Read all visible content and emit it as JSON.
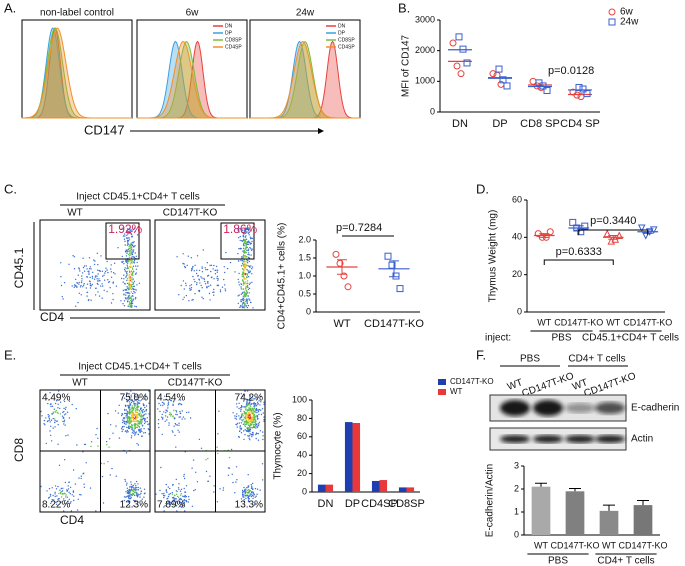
{
  "panels": {
    "A": {
      "label": "A.",
      "titles": [
        "non-label control",
        "6w",
        "24w"
      ],
      "legend": [
        "DN",
        "DP",
        "CD8SP",
        "CD4SP"
      ],
      "x_label": "CD147"
    },
    "B": {
      "label": "B."
    },
    "C": {
      "label": "C.",
      "title": "Inject CD45.1+CD4+ T cells",
      "groups": [
        "WT",
        "CD147T-KO"
      ],
      "gates": [
        "1.92%",
        "1.86%"
      ],
      "x_label": "CD4",
      "y_label": "CD45.1"
    },
    "D": {
      "label": "D."
    },
    "E": {
      "label": "E.",
      "title": "Inject CD45.1+CD4+ T cells",
      "groups": [
        "WT",
        "CD147T-KO"
      ],
      "quadrants": [
        [
          "4.49%",
          "75.0%",
          "8.22%",
          "12.3%"
        ],
        [
          "4.54%",
          "74.2%",
          "7.89%",
          "13.3%"
        ]
      ],
      "x_label": "CD4",
      "y_label": "CD8"
    },
    "F": {
      "label": "F.",
      "groups": [
        "PBS",
        "CD4+ T cells"
      ],
      "lanes": [
        "WT",
        "CD147T-KO",
        "WT",
        "CD147T-KO"
      ],
      "bands": [
        "E-cadherin",
        "Actin"
      ]
    }
  },
  "chart_data": [
    {
      "type": "dot",
      "categories": [
        "DN",
        "DP",
        "CD8 SP",
        "CD4 SP"
      ],
      "ylabel": "MFI of CD147",
      "ylim": [
        0,
        3000
      ],
      "yticks": [
        0,
        1000,
        2000,
        3000
      ],
      "annotations": [
        "p=0.0128"
      ],
      "series": [
        {
          "name": "6w",
          "color": "#e8413c",
          "marker": "circle",
          "values": [
            [
              2250,
              1500,
              1250
            ],
            [
              1250,
              1200,
              900
            ],
            [
              1000,
              850,
              800
            ],
            [
              650,
              550,
              500
            ]
          ],
          "means": [
            1650,
            1120,
            880,
            570
          ]
        },
        {
          "name": "24w",
          "color": "#3a5fcd",
          "marker": "square",
          "values": [
            [
              2450,
              2050,
              1600
            ],
            [
              1400,
              1050,
              850
            ],
            [
              950,
              850,
              700
            ],
            [
              800,
              750,
              600
            ]
          ],
          "means": [
            2030,
            1100,
            830,
            720
          ]
        }
      ]
    },
    {
      "type": "dot",
      "categories": [
        "WT",
        "CD147T-KO"
      ],
      "ylabel": "CD4+CD45.1+ cells (%)",
      "ylim": [
        0,
        2
      ],
      "yticks": [
        0,
        0.5,
        {
          "value": 1,
          "label": "1.0"
        },
        1.5,
        {
          "value": 2,
          "label": "2.0"
        }
      ],
      "annotations": [
        "p=0.7284"
      ],
      "values": [
        [
          1.6,
          1.35,
          1.0,
          0.7
        ],
        [
          1.55,
          1.3,
          1.0,
          0.65
        ]
      ],
      "means": [
        1.25,
        1.2
      ],
      "errors": [
        0.2,
        0.22
      ],
      "colors": [
        "#e8413c",
        "#3a5fcd"
      ],
      "markers": [
        "circle",
        "square"
      ]
    },
    {
      "type": "dot",
      "categories": [
        "WT",
        "CD147T-KO",
        "WT",
        "CD147T-KO"
      ],
      "ylabel": "Thymus Weight (mg)",
      "ylim": [
        0,
        60
      ],
      "yticks": [
        0,
        20,
        40,
        60
      ],
      "annotations": [
        "p=0.6333",
        "p=0.3440"
      ],
      "inject_label": "inject:",
      "group_labels": [
        "PBS",
        "CD45.1+CD4+ T cells"
      ],
      "values": [
        [
          42,
          40,
          40,
          43
        ],
        [
          48,
          45,
          43,
          46
        ],
        [
          42,
          38,
          39,
          41
        ],
        [
          45,
          41,
          43,
          44
        ]
      ],
      "means": [
        41,
        45,
        40,
        43
      ],
      "errors": [
        1,
        1.2,
        1,
        0.9
      ],
      "colors": [
        "#e8413c",
        "#3a5fcd",
        "#e8413c",
        "#3a5fcd"
      ],
      "markers": [
        "circle",
        "square",
        "triangle",
        "itriangle"
      ]
    },
    {
      "type": "bar",
      "categories": [
        "DN",
        "DP",
        "CD4SP",
        "CD8SP"
      ],
      "ylabel": "Thymocyte (%)",
      "ylim": [
        0,
        100
      ],
      "yticks": [
        0,
        20,
        40,
        60,
        80,
        100
      ],
      "series": [
        {
          "name": "CD147T-KO",
          "color": "#1f3fb0",
          "values": [
            8,
            76,
            12,
            5
          ]
        },
        {
          "name": "WT",
          "color": "#e8383a",
          "values": [
            8,
            75,
            13,
            5
          ]
        }
      ]
    },
    {
      "type": "bar",
      "categories": [
        "WT",
        "CD147T-KO",
        "WT",
        "CD147T-KO"
      ],
      "ylabel": "E-cadherin/Actin",
      "ylim": [
        0,
        3
      ],
      "yticks": [
        0,
        1,
        2,
        3
      ],
      "group_labels": [
        "PBS",
        "CD4+ T cells"
      ],
      "values": [
        2.1,
        1.9,
        1.05,
        1.3
      ],
      "errors": [
        0.15,
        0.12,
        0.25,
        0.2
      ],
      "colors": [
        "#a9a9a9",
        "#808080",
        "#8a8a8a",
        "#777777"
      ]
    }
  ]
}
